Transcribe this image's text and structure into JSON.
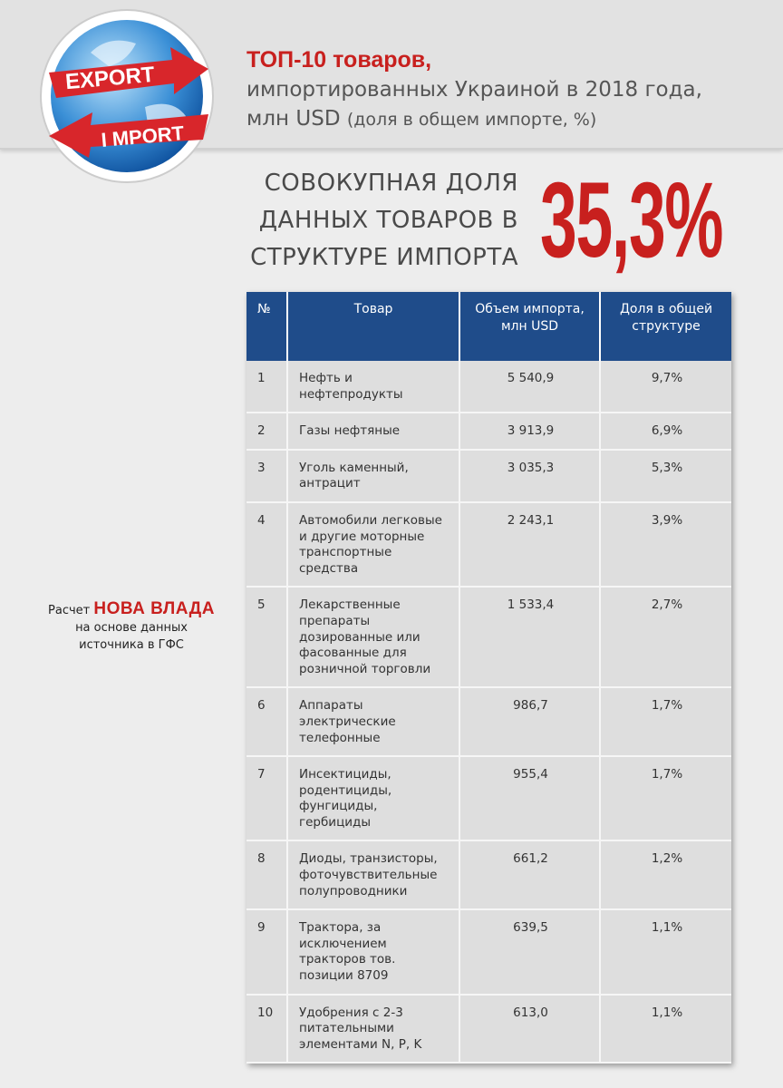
{
  "logo": {
    "export": "EXPORT",
    "import": "I MPORT"
  },
  "header": {
    "title_red": "ТОП-10 товаров,",
    "title_line2": "импортированных Украиной в 2018 года,",
    "title_line3_unit": "млн USD",
    "title_line3_note": "(доля в общем импорте, %)"
  },
  "summary": {
    "lines": [
      "СОВОКУПНАЯ ДОЛЯ",
      "ДАННЫХ ТОВАРОВ В",
      "СТРУКТУРЕ ИМПОРТА"
    ],
    "value": "35,3%"
  },
  "source": {
    "prefix": "Расчет",
    "brand": "НОВА ВЛАДА",
    "line2": "на основе данных",
    "line3": "источника в ГФС"
  },
  "table": {
    "columns": [
      "№",
      "Товар",
      "Объем импорта, млн USD",
      "Доля в общей структуре"
    ],
    "rows": [
      [
        "1",
        "Нефть и нефтепродукты",
        "5 540,9",
        "9,7%"
      ],
      [
        "2",
        "Газы нефтяные",
        "3 913,9",
        "6,9%"
      ],
      [
        "3",
        "Уголь каменный, антрацит",
        "3 035,3",
        "5,3%"
      ],
      [
        "4",
        "Автомобили легковые и другие моторные транспортные средства",
        "2 243,1",
        "3,9%"
      ],
      [
        "5",
        "Лекарственные препараты дозированные или фасованные для розничной торговли",
        "1 533,4",
        "2,7%"
      ],
      [
        "6",
        "Аппараты электрические телефонные",
        "986,7",
        "1,7%"
      ],
      [
        "7",
        "Инсектициды, родентициды, фунгициды, гербициды",
        "955,4",
        "1,7%"
      ],
      [
        "8",
        "Диоды, транзисторы, фоточувствительные полупроводники",
        "661,2",
        "1,2%"
      ],
      [
        "9",
        "Трактора, за исключением тракторов тов. позиции 8709",
        "639,5",
        "1,1%"
      ],
      [
        "10",
        "Удобрения с 2-3 питательными элементами N, P, K",
        "613,0",
        "1,1%"
      ]
    ]
  }
}
